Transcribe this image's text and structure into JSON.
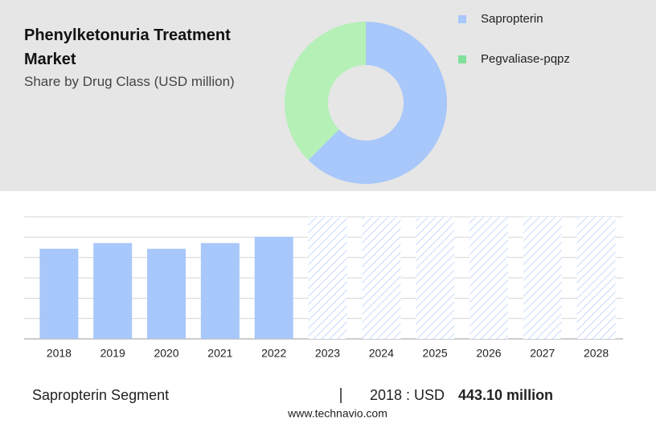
{
  "chart_data": [
    {
      "type": "pie",
      "title": "Phenylketonuria Treatment Market",
      "subtitle": "Share by Drug Class (USD million)",
      "categories": [
        "Sapropterin",
        "Pegvaliase-pqpz"
      ],
      "values": [
        62.5,
        37.5
      ],
      "colors": [
        "#a8c7fa",
        "#b5f0b7"
      ],
      "legend_colors": [
        "#a8c7fa",
        "#7fe09a"
      ]
    },
    {
      "type": "bar",
      "categories": [
        "2018",
        "2019",
        "2020",
        "2021",
        "2022",
        "2023",
        "2024",
        "2025",
        "2026",
        "2027",
        "2028"
      ],
      "values": [
        443.1,
        471,
        443,
        471,
        502,
        null,
        null,
        null,
        null,
        null,
        null
      ],
      "color": "#a8c7fa",
      "ylim": [
        0,
        600
      ],
      "yticks": [
        0,
        100,
        200,
        300,
        400,
        500,
        600
      ],
      "grid": true,
      "footer": {
        "segment": "Sapropterin Segment",
        "year_text": "2018 : USD",
        "value_text": "443.10 million",
        "source": "www.technavio.com"
      }
    }
  ]
}
